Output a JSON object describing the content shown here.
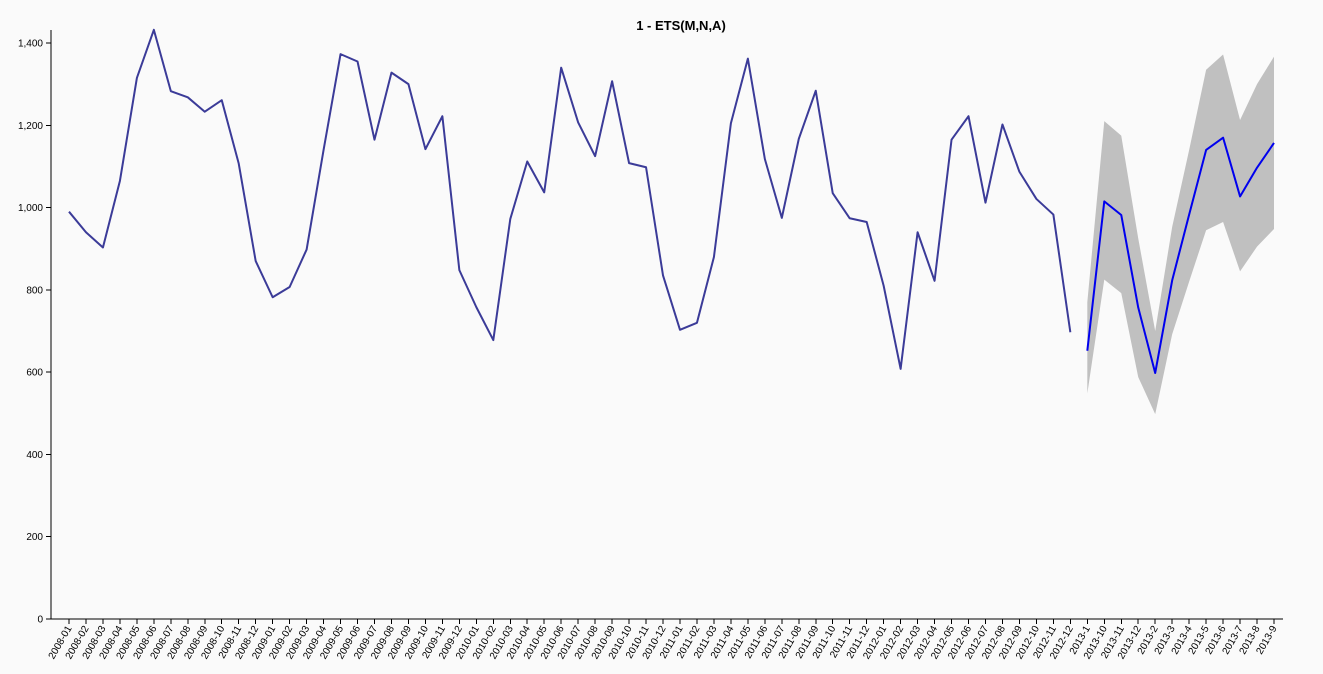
{
  "chart_data": {
    "type": "line",
    "title": "1 - ETS(M,N,A)",
    "xlabel": "",
    "ylabel": "",
    "ylim": [
      0,
      1400
    ],
    "y_ticks": [
      0,
      200,
      400,
      600,
      800,
      1000,
      1200,
      1400
    ],
    "y_tick_labels": [
      "0",
      "200",
      "400",
      "600",
      "800",
      "1,000",
      "1,200",
      "1,400"
    ],
    "grid": false,
    "categories": [
      "2008-01",
      "2008-02",
      "2008-03",
      "2008-04",
      "2008-05",
      "2008-06",
      "2008-07",
      "2008-08",
      "2008-09",
      "2008-10",
      "2008-11",
      "2008-12",
      "2009-01",
      "2009-02",
      "2009-03",
      "2009-04",
      "2009-05",
      "2009-06",
      "2009-07",
      "2009-08",
      "2009-09",
      "2009-10",
      "2009-11",
      "2009-12",
      "2010-01",
      "2010-02",
      "2010-03",
      "2010-04",
      "2010-05",
      "2010-06",
      "2010-07",
      "2010-08",
      "2010-09",
      "2010-10",
      "2010-11",
      "2010-12",
      "2011-01",
      "2011-02",
      "2011-03",
      "2011-04",
      "2011-05",
      "2011-06",
      "2011-07",
      "2011-08",
      "2011-09",
      "2011-10",
      "2011-11",
      "2011-12",
      "2012-01",
      "2012-02",
      "2012-03",
      "2012-04",
      "2012-05",
      "2012-06",
      "2012-07",
      "2012-08",
      "2012-09",
      "2012-10",
      "2012-11",
      "2012-12",
      "2013-1",
      "2013-10",
      "2013-11",
      "2013-12",
      "2013-2",
      "2013-3",
      "2013-4",
      "2013-5",
      "2013-6",
      "2013-7",
      "2013-8",
      "2013-9"
    ],
    "series": [
      {
        "color": "#3b3b98",
        "values": [
          990,
          940,
          903,
          1065,
          1315,
          1432,
          1283,
          1268,
          1233,
          1261,
          1107,
          870,
          782,
          807,
          898,
          1140,
          1373,
          1355,
          1165,
          1328,
          1300,
          1142,
          1222,
          848,
          758,
          678,
          972,
          1112,
          1037,
          1340,
          1207,
          1125,
          1307,
          1108,
          1098,
          835,
          703,
          720,
          880,
          1205,
          1362,
          1118,
          975,
          1167,
          1284,
          1035,
          974,
          965,
          810,
          608,
          940,
          822,
          1165,
          1222,
          1012,
          1202,
          1087,
          1021,
          983,
          697,
          null,
          null,
          null,
          null,
          null,
          null,
          null,
          null,
          null,
          null,
          null,
          null
        ]
      },
      {
        "color": "#0000ee",
        "values": [
          null,
          null,
          null,
          null,
          null,
          null,
          null,
          null,
          null,
          null,
          null,
          null,
          null,
          null,
          null,
          null,
          null,
          null,
          null,
          null,
          null,
          null,
          null,
          null,
          null,
          null,
          null,
          null,
          null,
          null,
          null,
          null,
          null,
          null,
          null,
          null,
          null,
          null,
          null,
          null,
          null,
          null,
          null,
          null,
          null,
          null,
          null,
          null,
          null,
          null,
          null,
          null,
          null,
          null,
          null,
          null,
          null,
          null,
          null,
          null,
          652,
          1015,
          982,
          757,
          598,
          823,
          983,
          1140,
          1170,
          1027,
          1097,
          1157
        ]
      }
    ],
    "band": {
      "color": "#c0c0c0",
      "start_index": 60,
      "lower": [
        548,
        825,
        792,
        588,
        498,
        692,
        820,
        945,
        965,
        845,
        905,
        948
      ],
      "upper": [
        770,
        1210,
        1175,
        925,
        700,
        953,
        1140,
        1335,
        1372,
        1213,
        1300,
        1367
      ]
    }
  }
}
